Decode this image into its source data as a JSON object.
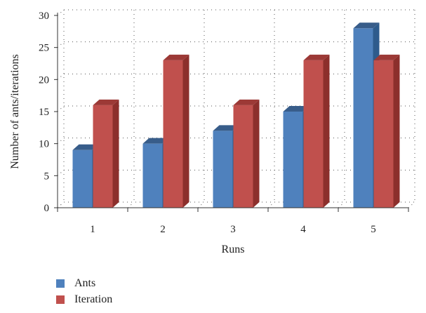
{
  "chart_data": {
    "type": "bar",
    "style": "3d-clustered",
    "categories": [
      "1",
      "2",
      "3",
      "4",
      "5"
    ],
    "series": [
      {
        "name": "Ants",
        "values": [
          9,
          10,
          12,
          15,
          28
        ],
        "color": "#4f81bd",
        "side_color": "#2e5b8c",
        "top_color": "#385d8a"
      },
      {
        "name": "Iteration",
        "values": [
          16,
          23,
          16,
          23,
          23
        ],
        "color": "#c0504d",
        "side_color": "#8c2f2c",
        "top_color": "#9c3936"
      }
    ],
    "title": "",
    "xlabel": "Runs",
    "ylabel": "Number of ants/iterations",
    "ylim": [
      0,
      30
    ],
    "yticks": [
      "0",
      "5",
      "10",
      "15",
      "20",
      "25",
      "30"
    ],
    "grid": true,
    "grid_style": "dotted",
    "legend_position": "bottom-left"
  }
}
